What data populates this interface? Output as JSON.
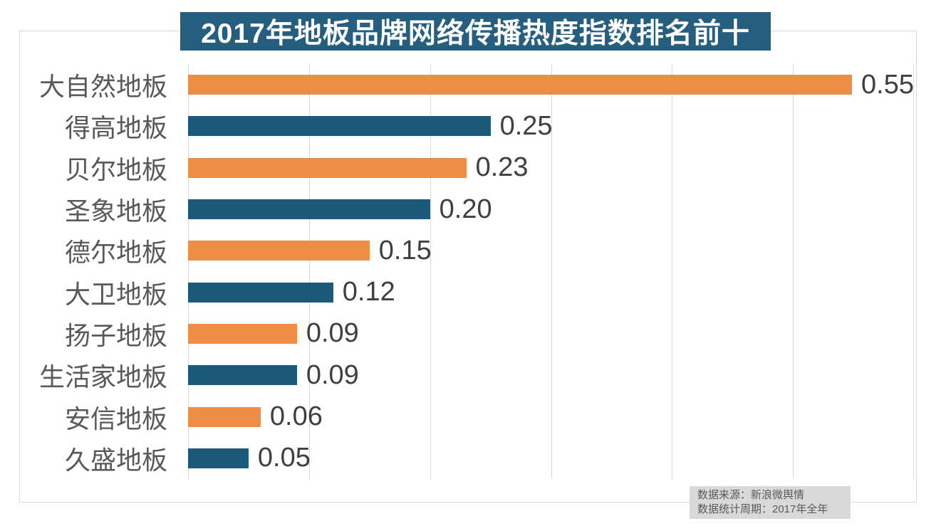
{
  "title": "2017年地板品牌网络传播热度指数排名前十",
  "chart_data": {
    "type": "bar",
    "orientation": "horizontal",
    "title": "2017年地板品牌网络传播热度指数排名前十",
    "categories": [
      "大自然地板",
      "得高地板",
      "贝尔地板",
      "圣象地板",
      "德尔地板",
      "大卫地板",
      "扬子地板",
      "生活家地板",
      "安信地板",
      "久盛地板"
    ],
    "values": [
      0.55,
      0.25,
      0.23,
      0.2,
      0.15,
      0.12,
      0.09,
      0.09,
      0.06,
      0.05
    ],
    "value_labels": [
      "0.55",
      "0.25",
      "0.23",
      "0.20",
      "0.15",
      "0.12",
      "0.09",
      "0.09",
      "0.06",
      "0.05"
    ],
    "xlabel": "",
    "ylabel": "",
    "xlim": [
      0,
      0.6
    ],
    "grid_step": 0.1,
    "grid": true,
    "legend": false,
    "bar_color_odd_rank": "#EE8D45",
    "bar_color_even_rank": "#1C5A7C"
  },
  "source_note": {
    "line1": "数据来源：新浪微舆情",
    "line2": "数据统计周期：2017年全年"
  },
  "colors": {
    "title_bg": "#255E7E",
    "title_text": "#FFFFFF",
    "orange_bar": "#EE8D45",
    "blue_bar": "#1C5A7C",
    "grid_line": "#D9D9D9",
    "frame_border": "#D9D9D9",
    "category_text": "#595959",
    "value_text": "#3F3F3F",
    "source_bg": "#D9D9D9",
    "source_text": "#595959"
  }
}
